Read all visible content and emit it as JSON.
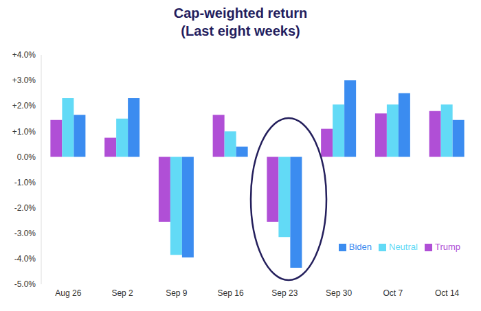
{
  "chart_data": {
    "type": "bar",
    "title": "Cap-weighted return",
    "subtitle": "(Last eight weeks)",
    "categories": [
      "Aug 26",
      "Sep 2",
      "Sep 9",
      "Sep 16",
      "Sep 23",
      "Sep 30",
      "Oct 7",
      "Oct 14"
    ],
    "series": [
      {
        "name": "Trump",
        "color": "#b04fd6",
        "values": [
          1.45,
          0.75,
          -2.55,
          1.65,
          -2.55,
          1.1,
          1.7,
          1.8
        ]
      },
      {
        "name": "Neutral",
        "color": "#62daf6",
        "values": [
          2.3,
          1.5,
          -3.85,
          1.0,
          -3.15,
          2.05,
          2.05,
          2.05
        ]
      },
      {
        "name": "Biden",
        "color": "#3b8cf0",
        "values": [
          1.65,
          2.3,
          -3.95,
          0.4,
          -4.35,
          3.0,
          2.5,
          1.45
        ]
      }
    ],
    "ylim": [
      -5,
      4
    ],
    "yticks": [
      {
        "value": 4,
        "label": "+4.0%"
      },
      {
        "value": 3,
        "label": "+3.0%"
      },
      {
        "value": 2,
        "label": "+2.0%"
      },
      {
        "value": 1,
        "label": "+1.0%"
      },
      {
        "value": 0,
        "label": "0.0%"
      },
      {
        "value": -1,
        "label": "-1.0%"
      },
      {
        "value": -2,
        "label": "-2.0%"
      },
      {
        "value": -3,
        "label": "-3.0%"
      },
      {
        "value": -4,
        "label": "-4.0%"
      },
      {
        "value": -5,
        "label": "-5.0%"
      }
    ],
    "grid": false,
    "legend": "lower right"
  }
}
